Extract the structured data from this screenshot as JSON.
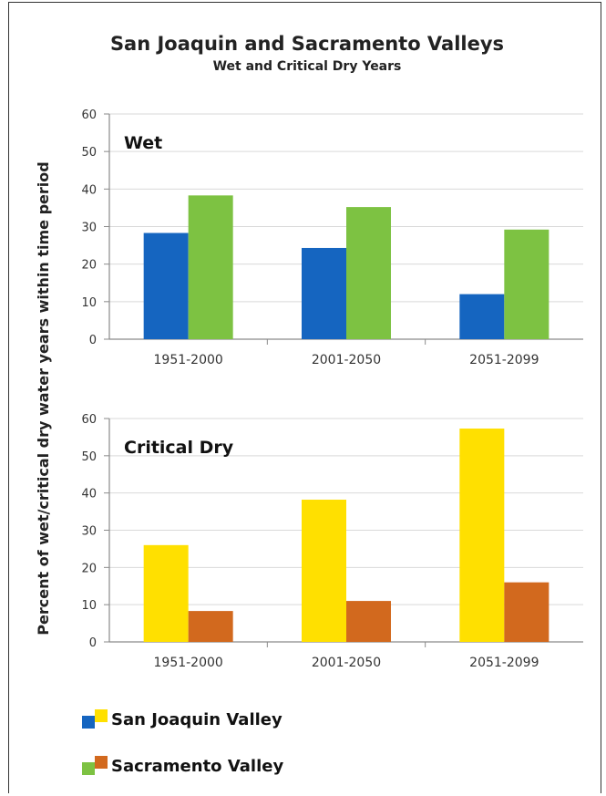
{
  "chart_data": {
    "type": "bar",
    "title": "San Joaquin and Sacramento Valleys",
    "subtitle": "Wet and Critical Dry Years",
    "ylabel": "Percent of wet/critical dry water years within time period",
    "ylim": [
      0,
      60
    ],
    "yticks": [
      0,
      10,
      20,
      30,
      40,
      50,
      60
    ],
    "categories": [
      "1951-2000",
      "2001-2050",
      "2051-2099"
    ],
    "panels": [
      {
        "label": "Wet",
        "series": [
          {
            "name": "San Joaquin Valley",
            "color": "#1565c0",
            "values": [
              28.3,
              24.3,
              12
            ]
          },
          {
            "name": "Sacramento Valley",
            "color": "#7dc242",
            "values": [
              38.3,
              35.2,
              29.2
            ]
          }
        ]
      },
      {
        "label": "Critical Dry",
        "series": [
          {
            "name": "San Joaquin Valley",
            "color": "#ffe000",
            "values": [
              26,
              38.2,
              57.3
            ]
          },
          {
            "name": "Sacramento Valley",
            "color": "#d2691e",
            "values": [
              8.3,
              11,
              16
            ]
          }
        ]
      }
    ],
    "legend": [
      {
        "label": "San Joaquin Valley",
        "colors": [
          "#1565c0",
          "#ffe000"
        ]
      },
      {
        "label": "Sacramento Valley",
        "colors": [
          "#7dc242",
          "#d2691e"
        ]
      }
    ],
    "legend_position": "bottom-left",
    "grid": true
  }
}
